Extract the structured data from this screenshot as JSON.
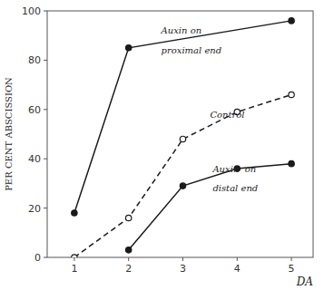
{
  "chart_data": {
    "type": "line",
    "x_label": "DA",
    "y_label": "PER CENT ABSCISSION",
    "xlim": [
      0.5,
      5.4
    ],
    "ylim": [
      0,
      100
    ],
    "xticks": [
      1,
      2,
      3,
      4,
      5
    ],
    "yticks": [
      0,
      20,
      40,
      60,
      80,
      100
    ],
    "grid": false,
    "series": [
      {
        "x": [
          1,
          2,
          5
        ],
        "values": [
          18,
          85,
          96
        ],
        "color": "#1a1a1a",
        "marker": "circle",
        "line_style": "solid"
      },
      {
        "x": [
          1,
          2,
          3,
          4,
          5
        ],
        "values": [
          0,
          16,
          48,
          59,
          66
        ],
        "color": "#1a1a1a",
        "marker": "open-circle",
        "line_style": "dashed"
      },
      {
        "x": [
          2,
          3,
          4,
          5
        ],
        "values": [
          3,
          29,
          36,
          38
        ],
        "color": "#1a1a1a",
        "marker": "circle",
        "line_style": "solid"
      }
    ],
    "annotations": [
      {
        "text": "Auxin on",
        "x": 2.6,
        "y": 90
      },
      {
        "text": "proximal end",
        "x": 2.6,
        "y": 82
      },
      {
        "text": "Control",
        "x": 3.5,
        "y": 56
      },
      {
        "text": "Auxin  on",
        "x": 3.55,
        "y": 34
      },
      {
        "text": "distal end",
        "x": 3.55,
        "y": 26
      }
    ]
  }
}
